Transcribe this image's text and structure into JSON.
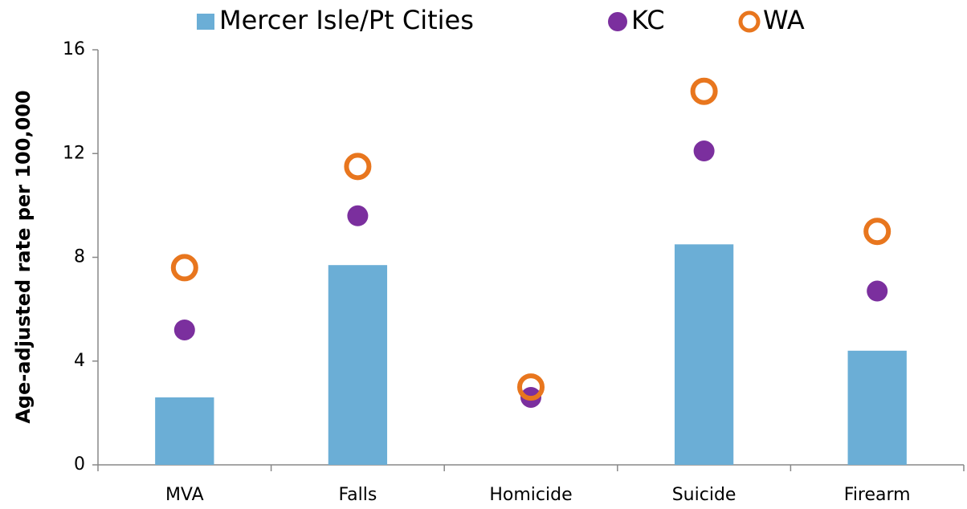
{
  "chart_data": {
    "type": "bar",
    "ylabel": "Age-adjusted rate per 100,000",
    "categories": [
      "MVA",
      "Falls",
      "Homicide",
      "Suicide",
      "Firearm"
    ],
    "series": [
      {
        "name": "Mercer Isle/Pt Cities",
        "color": "#6baed6",
        "kind": "bar",
        "values": [
          2.6,
          7.7,
          null,
          8.5,
          4.4
        ]
      },
      {
        "name": "KC",
        "color": "#7b2f9e",
        "kind": "dot",
        "values": [
          5.2,
          9.6,
          2.6,
          12.1,
          6.7
        ]
      },
      {
        "name": "WA",
        "color": "#e8761e",
        "kind": "ring",
        "values": [
          7.6,
          11.5,
          3.0,
          14.4,
          9.0
        ]
      }
    ],
    "ylim": [
      0,
      16
    ],
    "yticks": [
      0,
      4,
      8,
      12,
      16
    ],
    "grid": false,
    "legend": "top"
  }
}
